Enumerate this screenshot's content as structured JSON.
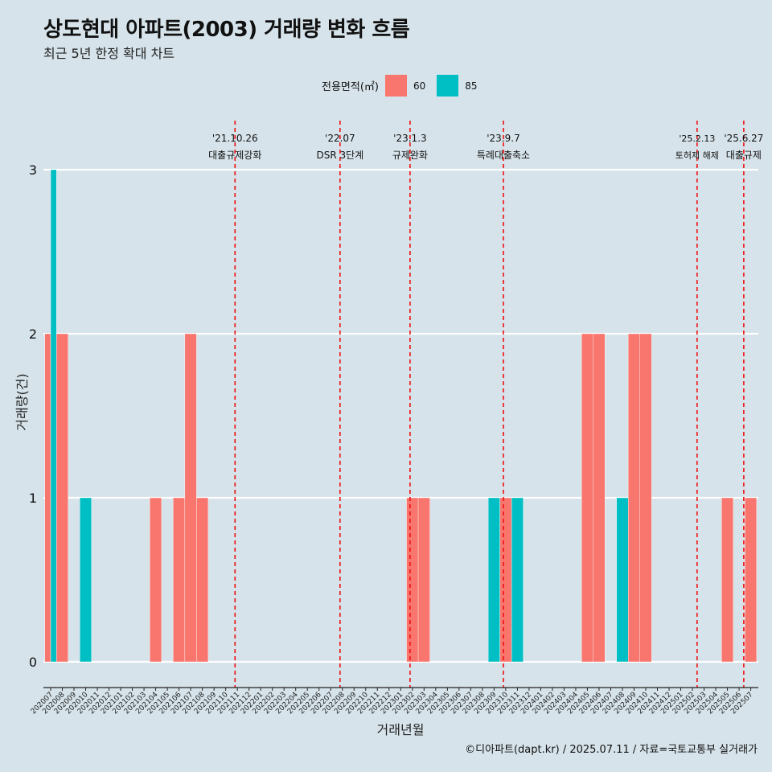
{
  "title": "상도현대 아파트(2003) 거래량 변화 흐름",
  "subtitle": "최근 5년 한정 확대 차트",
  "legend": {
    "title": "전용면적(㎡)",
    "items": [
      {
        "label": "60",
        "color": "#F8766D"
      },
      {
        "label": "85",
        "color": "#00BFC4"
      }
    ]
  },
  "caption": "©디아파트(dapt.kr) / 2025.07.11 / 자료=국토교통부 실거래가",
  "chart_data": {
    "type": "bar",
    "title": "상도현대 아파트(2003) 거래량 변화 흐름",
    "xlabel": "거래년월",
    "ylabel": "거래량(건)",
    "ylim": [
      0,
      3
    ],
    "yticks": [
      0,
      1,
      2,
      3
    ],
    "grid": true,
    "legend_position": "top",
    "categories": [
      "202007",
      "202008",
      "202009",
      "202010",
      "202011",
      "202012",
      "202101",
      "202102",
      "202103",
      "202104",
      "202105",
      "202106",
      "202107",
      "202108",
      "202109",
      "202110",
      "202111",
      "202112",
      "202201",
      "202202",
      "202203",
      "202204",
      "202205",
      "202206",
      "202207",
      "202208",
      "202209",
      "202210",
      "202211",
      "202212",
      "202301",
      "202302",
      "202303",
      "202304",
      "202305",
      "202306",
      "202307",
      "202308",
      "202309",
      "202310",
      "202311",
      "202312",
      "202401",
      "202402",
      "202403",
      "202404",
      "202405",
      "202406",
      "202407",
      "202408",
      "202409",
      "202410",
      "202411",
      "202412",
      "202501",
      "202502",
      "202503",
      "202504",
      "202505",
      "202506",
      "202507"
    ],
    "series": [
      {
        "name": "60",
        "color": "#F8766D",
        "values": [
          2,
          2,
          0,
          0,
          0,
          0,
          0,
          0,
          0,
          1,
          0,
          1,
          2,
          1,
          0,
          0,
          0,
          0,
          0,
          0,
          0,
          0,
          0,
          0,
          0,
          0,
          0,
          0,
          0,
          0,
          0,
          1,
          1,
          0,
          0,
          0,
          0,
          0,
          0,
          1,
          0,
          0,
          0,
          0,
          0,
          0,
          2,
          2,
          0,
          0,
          2,
          2,
          0,
          0,
          0,
          0,
          0,
          0,
          1,
          0,
          1
        ]
      },
      {
        "name": "85",
        "color": "#00BFC4",
        "values": [
          3,
          0,
          0,
          1,
          0,
          0,
          0,
          0,
          0,
          0,
          0,
          0,
          0,
          0,
          0,
          0,
          0,
          0,
          0,
          0,
          0,
          0,
          0,
          0,
          0,
          0,
          0,
          0,
          0,
          0,
          0,
          0,
          0,
          0,
          0,
          0,
          0,
          0,
          1,
          0,
          1,
          0,
          0,
          0,
          0,
          0,
          0,
          0,
          0,
          1,
          0,
          0,
          0,
          0,
          0,
          0,
          0,
          0,
          0,
          0,
          0
        ]
      }
    ],
    "events": [
      {
        "date": "'21.10.26",
        "label": "대출규제강화",
        "index": 15.8
      },
      {
        "date": "'22.07",
        "label": "DSR 3단계",
        "index": 24.8
      },
      {
        "date": "'23.1.3",
        "label": "규제완화",
        "index": 30.8
      },
      {
        "date": "'23.9.7",
        "label": "특례대출축소",
        "index": 38.8
      },
      {
        "date": "'25.2.13",
        "label": "토허제 해제",
        "index": 55.4
      },
      {
        "date": "'25.6.27",
        "label": "대출규제",
        "index": 59.4
      }
    ]
  }
}
